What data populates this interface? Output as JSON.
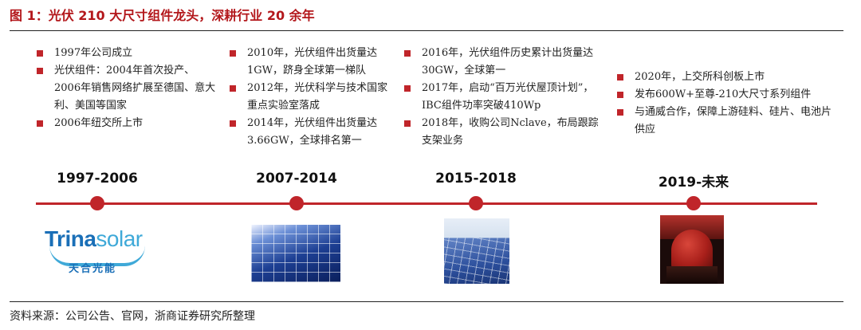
{
  "title": "图 1：光伏 210 大尺寸组件龙头，深耕行业 20 余年",
  "source": "资料来源：公司公告、官网，浙商证券研究所整理",
  "columns": [
    {
      "period": "1997-2006",
      "items": [
        "1997年公司成立",
        "光伏组件：2004年首次投产、2006年销售网络扩展至德国、意大利、美国等国家",
        "2006年纽交所上市"
      ],
      "image": "trina-solar-logo",
      "logo_brand_a": "Trina",
      "logo_brand_b": "solar",
      "logo_cn": "天合光能"
    },
    {
      "period": "2007-2014",
      "items": [
        "2010年，光伏组件出货量达1GW，跻身全球第一梯队",
        "2012年，光伏科学与技术国家重点实验室落成",
        "2014年，光伏组件出货量达3.66GW，全球排名第一"
      ],
      "image": "solar-panel-photo"
    },
    {
      "period": "2015-2018",
      "items": [
        "2016年，光伏组件历史累计出货量达30GW，全球第一",
        "2017年，启动“百万光伏屋顶计划”，IBC组件功率突破410Wp",
        "2018年，收购公司Nclave，布局跟踪支架业务"
      ],
      "image": "solar-array-photo"
    },
    {
      "period": "2019-未来",
      "items": [
        "2020年，上交所科创板上市",
        "发布600W+至尊-210大尺寸系列组件",
        "与通威合作，保障上游硅料、硅片、电池片供应"
      ],
      "image": "ipo-bell-ringing-photo"
    }
  ],
  "colors": {
    "accent": "#c0252a",
    "title": "#b3171b"
  }
}
